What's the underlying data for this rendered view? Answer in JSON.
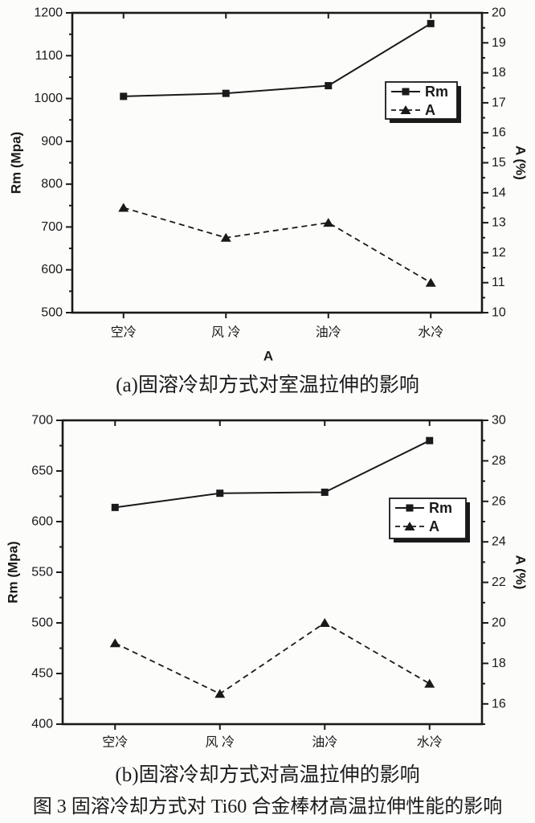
{
  "figure_caption": "图 3 固溶冷却方式对 Ti60 合金棒材高温拉伸性能的影响",
  "colors": {
    "ink": "#1a1a1a",
    "paper": "#fcfcfb"
  },
  "chart_data": [
    {
      "id": "a",
      "type": "line",
      "caption": "(a)固溶冷却方式对室温拉伸的影响",
      "categories": [
        "空冷",
        "风 冷",
        "油冷",
        "水冷"
      ],
      "xlabel": "A",
      "grid": false,
      "left_axis": {
        "label": "Rm (Mpa)",
        "min": 500,
        "max": 1200,
        "major": 100,
        "minor": 50
      },
      "right_axis": {
        "label": "A (%)",
        "min": 10,
        "max": 20,
        "major": 1,
        "minor": 0.5
      },
      "legend": {
        "position": "middle-right",
        "entries": [
          "Rm",
          "A"
        ]
      },
      "series": [
        {
          "name": "Rm",
          "axis": "left",
          "marker": "square",
          "line": "solid",
          "values": [
            1005,
            1012,
            1030,
            1175
          ]
        },
        {
          "name": "A",
          "axis": "right",
          "marker": "triangle",
          "line": "dashed",
          "values": [
            13.5,
            12.5,
            13.0,
            11.0
          ]
        }
      ]
    },
    {
      "id": "b",
      "type": "line",
      "caption": "(b)固溶冷却方式对高温拉伸的影响",
      "categories": [
        "空冷",
        "风 冷",
        "油冷",
        "水冷"
      ],
      "xlabel": "",
      "grid": false,
      "left_axis": {
        "label": "Rm (Mpa)",
        "min": 400,
        "max": 700,
        "major": 50,
        "minor": 25
      },
      "right_axis": {
        "label": "A (%)",
        "min": 15,
        "max": 30,
        "major": 2,
        "minor": 1
      },
      "legend": {
        "position": "middle-right",
        "entries": [
          "Rm",
          "A"
        ]
      },
      "series": [
        {
          "name": "Rm",
          "axis": "left",
          "marker": "square",
          "line": "solid",
          "values": [
            614,
            628,
            629,
            680
          ]
        },
        {
          "name": "A",
          "axis": "right",
          "marker": "triangle",
          "line": "dashed",
          "values": [
            19.0,
            16.5,
            20.0,
            17.0
          ]
        }
      ]
    }
  ]
}
